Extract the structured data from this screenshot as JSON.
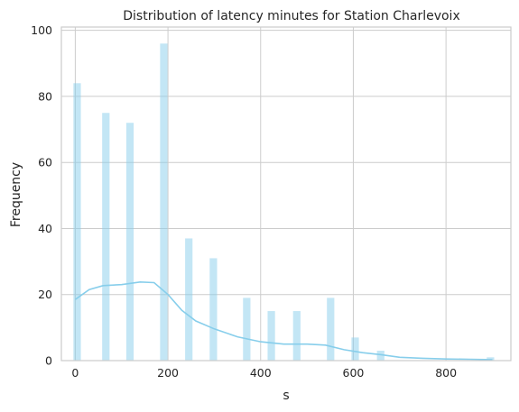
{
  "chart_data": {
    "type": "bar",
    "title": "Distribution of latency minutes for Station Charlevoix",
    "xlabel": "s",
    "ylabel": "Frequency",
    "xlim": [
      -30,
      940
    ],
    "ylim": [
      0,
      101
    ],
    "xticks": [
      0,
      200,
      400,
      600,
      800
    ],
    "yticks": [
      0,
      20,
      40,
      60,
      80,
      100
    ],
    "grid": true,
    "bar_color": "#87ceeb",
    "line_color": "#87ceeb",
    "bins": [
      {
        "x": 4,
        "value": 84
      },
      {
        "x": 66,
        "value": 75
      },
      {
        "x": 118,
        "value": 72
      },
      {
        "x": 191,
        "value": 96
      },
      {
        "x": 245,
        "value": 37
      },
      {
        "x": 298,
        "value": 31
      },
      {
        "x": 370,
        "value": 19
      },
      {
        "x": 423,
        "value": 15
      },
      {
        "x": 478,
        "value": 15
      },
      {
        "x": 551,
        "value": 19
      },
      {
        "x": 604,
        "value": 7
      },
      {
        "x": 659,
        "value": 3
      },
      {
        "x": 896,
        "value": 1
      }
    ],
    "bin_width": 16,
    "kde": {
      "x": [
        0,
        30,
        60,
        100,
        140,
        170,
        200,
        230,
        260,
        300,
        350,
        400,
        450,
        500,
        540,
        580,
        620,
        660,
        700,
        750,
        800,
        850,
        900
      ],
      "y": [
        18.5,
        21.5,
        22.7,
        23.0,
        23.8,
        23.6,
        20.0,
        15.2,
        12.0,
        9.6,
        7.2,
        5.7,
        5.0,
        5.0,
        4.7,
        3.3,
        2.4,
        1.8,
        1.0,
        0.7,
        0.5,
        0.4,
        0.3
      ]
    }
  }
}
